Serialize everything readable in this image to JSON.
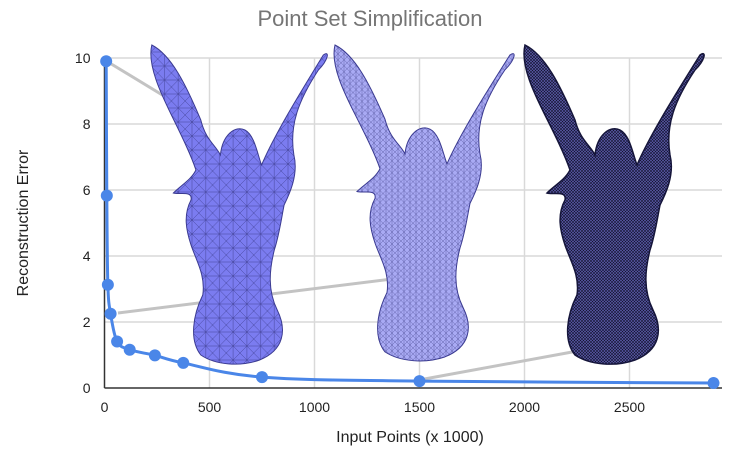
{
  "chart_data": {
    "type": "line",
    "title": "Point Set Simplification",
    "xlabel": "Input Points (x 1000)",
    "ylabel": "Reconstruction Error",
    "xlim": [
      0,
      2950
    ],
    "ylim": [
      0,
      10
    ],
    "xticks": [
      0,
      500,
      1000,
      1500,
      2000,
      2500
    ],
    "yticks": [
      0,
      2,
      4,
      6,
      8,
      10
    ],
    "grid": true,
    "series": [
      {
        "color": "#4a86e8",
        "x": [
          8,
          11,
          16,
          29,
          60,
          120,
          240,
          375,
          750,
          1500,
          2900
        ],
        "y": [
          9.9,
          5.83,
          3.13,
          2.25,
          1.41,
          1.16,
          0.99,
          0.76,
          0.33,
          0.21,
          0.15
        ]
      }
    ],
    "annotations": [
      {
        "type": "image",
        "depicts": "coarse mesh statue",
        "color": "#7b7cf0",
        "points_to": [
          8,
          9.9
        ]
      },
      {
        "type": "image",
        "depicts": "medium mesh statue",
        "color": "#a7a8f2",
        "points_to": [
          29,
          2.25
        ]
      },
      {
        "type": "image",
        "depicts": "dense mesh statue",
        "color": "#2a2a60",
        "points_to": [
          1500,
          0.21
        ]
      }
    ]
  }
}
